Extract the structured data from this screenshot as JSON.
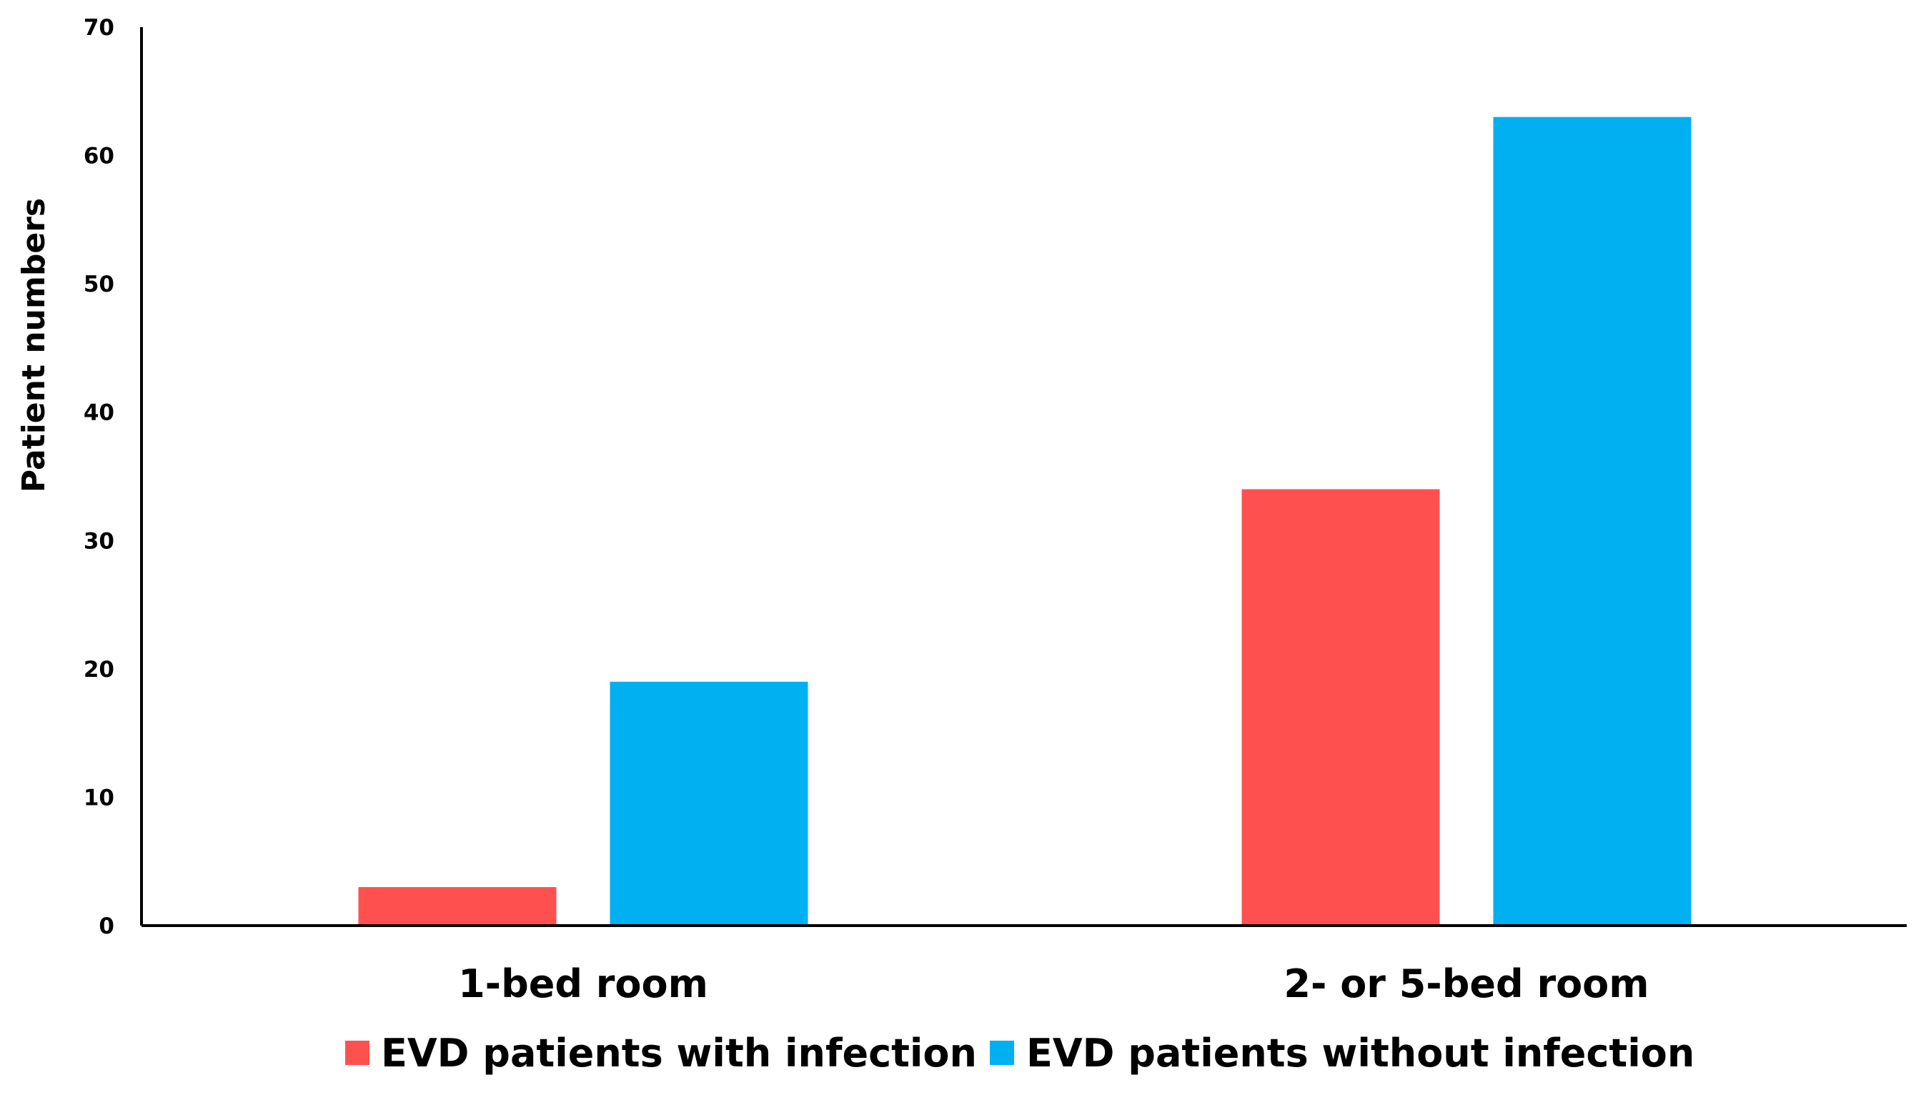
{
  "chart_data": {
    "type": "bar",
    "title": "",
    "xlabel": "",
    "ylabel": "Patient numbers",
    "ylim": [
      0,
      70
    ],
    "ytick_step": 10,
    "yticks": [
      "0",
      "10",
      "20",
      "30",
      "40",
      "50",
      "60",
      "70"
    ],
    "grid": false,
    "categories": [
      "1-bed room",
      "2- or 5-bed room"
    ],
    "series": [
      {
        "name": "EVD patients with infection",
        "color": "#ff5050",
        "values": [
          3,
          34
        ]
      },
      {
        "name": "EVD patients without infection",
        "color": "#00b0f0",
        "values": [
          19,
          63
        ]
      }
    ],
    "legend_position": "bottom"
  }
}
